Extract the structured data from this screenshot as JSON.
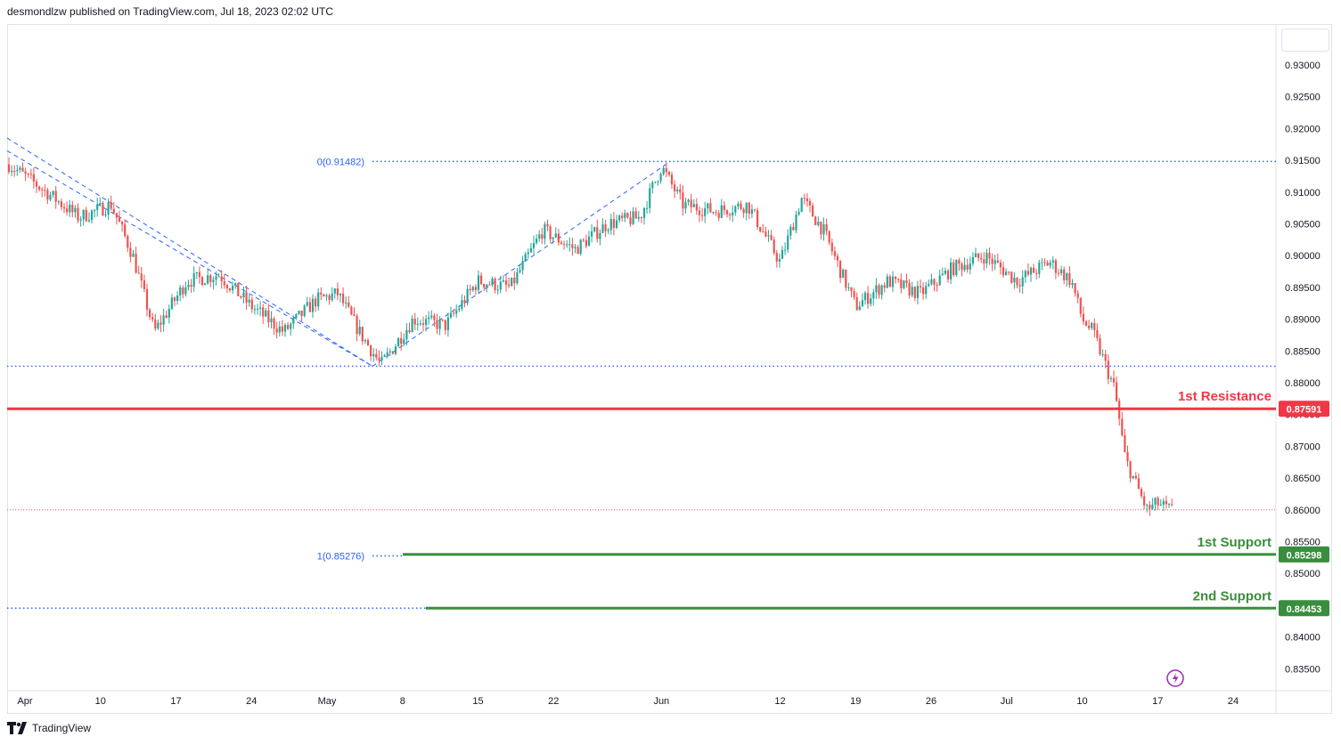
{
  "header": {
    "publisher_text": "desmondlzw published on TradingView.com, Jul 18, 2023 02:02 UTC"
  },
  "footer": {
    "brand": "TradingView",
    "logo_icon": "tradingview-logo-icon"
  },
  "colors": {
    "up": "#26a69a",
    "down": "#ef5350",
    "resistance": "#f23645",
    "support": "#388e3c",
    "fib": "#2962ff",
    "last_price": "#f23645"
  },
  "chart_data": {
    "type": "candlestick",
    "instrument_note": "",
    "y_axis": {
      "ticks": [
        "0.93000",
        "0.92500",
        "0.92000",
        "0.91500",
        "0.91000",
        "0.90500",
        "0.90000",
        "0.89500",
        "0.89000",
        "0.88500",
        "0.88000",
        "0.87500",
        "0.87000",
        "0.86500",
        "0.86000",
        "0.85500",
        "0.85000",
        "0.84500",
        "0.84000",
        "0.83500"
      ],
      "range": [
        0.8315,
        0.9345
      ]
    },
    "x_axis": {
      "ticks": [
        "Apr",
        "10",
        "17",
        "24",
        "May",
        "8",
        "15",
        "22",
        "Jun",
        "12",
        "19",
        "26",
        "Jul",
        "10",
        "17",
        "24"
      ]
    },
    "price_path": [
      [
        "2023-04-01",
        0.915
      ],
      [
        "2023-04-05",
        0.91
      ],
      [
        "2023-04-08",
        0.906
      ],
      [
        "2023-04-11",
        0.908
      ],
      [
        "2023-04-13",
        0.9
      ],
      [
        "2023-04-15",
        0.888
      ],
      [
        "2023-04-18",
        0.896
      ],
      [
        "2023-04-21",
        0.897
      ],
      [
        "2023-04-24",
        0.892
      ],
      [
        "2023-04-27",
        0.888
      ],
      [
        "2023-04-30",
        0.893
      ],
      [
        "2023-05-02",
        0.894
      ],
      [
        "2023-05-04",
        0.888
      ],
      [
        "2023-05-06",
        0.8828
      ],
      [
        "2023-05-09",
        0.89
      ],
      [
        "2023-05-12",
        0.889
      ],
      [
        "2023-05-15",
        0.896
      ],
      [
        "2023-05-18",
        0.895
      ],
      [
        "2023-05-21",
        0.904
      ],
      [
        "2023-05-24",
        0.901
      ],
      [
        "2023-05-27",
        0.905
      ],
      [
        "2023-05-30",
        0.906
      ],
      [
        "2023-06-01",
        0.914
      ],
      [
        "2023-06-03",
        0.908
      ],
      [
        "2023-06-06",
        0.907
      ],
      [
        "2023-06-09",
        0.908
      ],
      [
        "2023-06-12",
        0.899
      ],
      [
        "2023-06-14",
        0.909
      ],
      [
        "2023-06-16",
        0.904
      ],
      [
        "2023-06-19",
        0.892
      ],
      [
        "2023-06-22",
        0.896
      ],
      [
        "2023-06-25",
        0.894
      ],
      [
        "2023-06-28",
        0.898
      ],
      [
        "2023-07-01",
        0.9
      ],
      [
        "2023-07-04",
        0.896
      ],
      [
        "2023-07-07",
        0.899
      ],
      [
        "2023-07-09",
        0.896
      ],
      [
        "2023-07-10",
        0.89
      ],
      [
        "2023-07-11",
        0.888
      ],
      [
        "2023-07-13",
        0.879
      ],
      [
        "2023-07-14",
        0.868
      ],
      [
        "2023-07-16",
        0.86
      ],
      [
        "2023-07-17",
        0.861
      ],
      [
        "2023-07-18",
        0.86
      ]
    ],
    "last_price": 0.86,
    "horizontal_levels": [
      {
        "name": "resistance",
        "label": "1st Resistance",
        "value": 0.87591,
        "value_label": "0.87591",
        "color": "#f23645"
      },
      {
        "name": "support-1",
        "label": "1st Support",
        "value": 0.85298,
        "value_label": "0.85298",
        "color": "#388e3c"
      },
      {
        "name": "support-2",
        "label": "2nd Support",
        "value": 0.84453,
        "value_label": "0.84453",
        "color": "#388e3c"
      }
    ],
    "fib": {
      "level_0_label": "0(0.91482)",
      "level_0_value": 0.91482,
      "level_1_label": "1(0.85276)",
      "level_1_value": 0.85276,
      "retrace_line_value": 0.8826
    },
    "annotations": [
      "1st Resistance",
      "1st Support",
      "2nd Support"
    ],
    "grid": false,
    "legend": "none"
  }
}
